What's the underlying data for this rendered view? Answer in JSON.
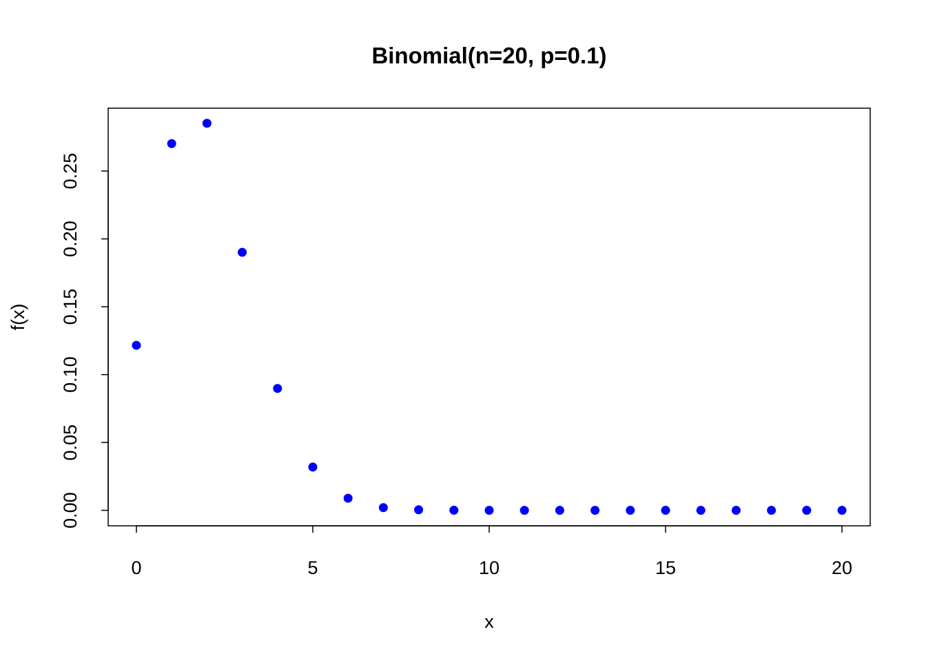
{
  "colors": {
    "point": "#0000ff",
    "axis": "#000000",
    "background": "#ffffff"
  },
  "chart_data": {
    "type": "scatter",
    "title": "Binomial(n=20, p=0.1)",
    "xlabel": "x",
    "ylabel": "f(x)",
    "xlim": [
      -0.8,
      20.8
    ],
    "ylim": [
      -0.0114,
      0.2963
    ],
    "grid": false,
    "legend": "none",
    "x_ticks": [
      {
        "value": 0,
        "label": "0"
      },
      {
        "value": 5,
        "label": "5"
      },
      {
        "value": 10,
        "label": "10"
      },
      {
        "value": 15,
        "label": "15"
      },
      {
        "value": 20,
        "label": "20"
      }
    ],
    "y_ticks": [
      {
        "value": 0.0,
        "label": "0.00"
      },
      {
        "value": 0.05,
        "label": "0.05"
      },
      {
        "value": 0.1,
        "label": "0.10"
      },
      {
        "value": 0.15,
        "label": "0.15"
      },
      {
        "value": 0.2,
        "label": "0.20"
      },
      {
        "value": 0.25,
        "label": "0.25"
      }
    ],
    "series": [
      {
        "x": [
          0,
          1,
          2,
          3,
          4,
          5,
          6,
          7,
          8,
          9,
          10,
          11,
          12,
          13,
          14,
          15,
          16,
          17,
          18,
          19,
          20
        ],
        "values": [
          0.1216,
          0.2702,
          0.2852,
          0.1901,
          0.0898,
          0.0319,
          0.0089,
          0.002,
          0.0004,
          0.0001,
          0.0,
          0.0,
          0.0,
          0.0,
          0.0,
          0.0,
          0.0,
          0.0,
          0.0,
          0.0,
          0.0
        ]
      }
    ]
  }
}
